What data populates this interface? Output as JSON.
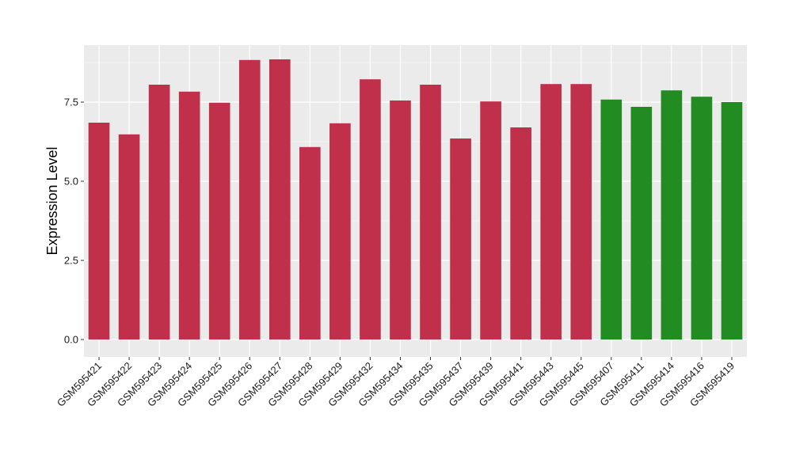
{
  "chart_data": {
    "type": "bar",
    "xlabel": "",
    "ylabel": "Expression Level",
    "ylim": [
      -0.55,
      9.3
    ],
    "yticks": [
      0.0,
      2.5,
      5.0,
      7.5
    ],
    "ytick_labels": [
      "0.0",
      "2.5",
      "5.0",
      "7.5"
    ],
    "grid": true,
    "panel_background": "#ebebeb",
    "grid_color": "#ffffff",
    "categories": [
      "GSM595421",
      "GSM595422",
      "GSM595423",
      "GSM595424",
      "GSM595425",
      "GSM595426",
      "GSM595427",
      "GSM595428",
      "GSM595429",
      "GSM595432",
      "GSM595434",
      "GSM595435",
      "GSM595437",
      "GSM595439",
      "GSM595441",
      "GSM595443",
      "GSM595445",
      "GSM595407",
      "GSM595411",
      "GSM595414",
      "GSM595416",
      "GSM595419"
    ],
    "values": [
      6.85,
      6.48,
      8.05,
      7.83,
      7.48,
      8.83,
      8.85,
      6.08,
      6.83,
      8.22,
      7.55,
      8.05,
      6.35,
      7.52,
      6.7,
      8.07,
      8.07,
      7.58,
      7.35,
      7.87,
      7.67,
      7.5
    ],
    "bar_colors": [
      "#c0304b",
      "#c0304b",
      "#c0304b",
      "#c0304b",
      "#c0304b",
      "#c0304b",
      "#c0304b",
      "#c0304b",
      "#c0304b",
      "#c0304b",
      "#c0304b",
      "#c0304b",
      "#c0304b",
      "#c0304b",
      "#c0304b",
      "#c0304b",
      "#c0304b",
      "#228b22",
      "#228b22",
      "#228b22",
      "#228b22",
      "#228b22"
    ]
  }
}
